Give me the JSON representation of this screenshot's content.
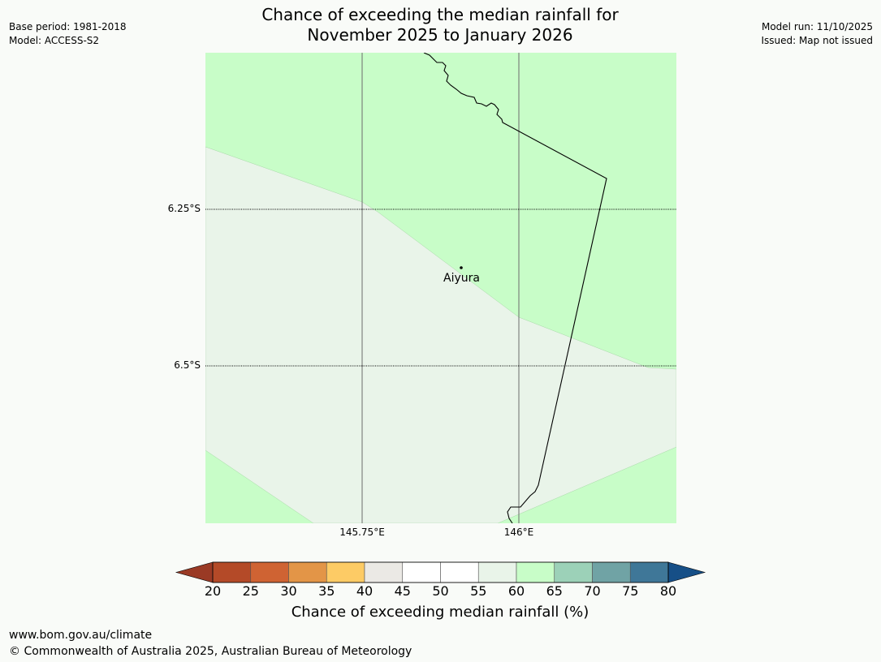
{
  "title": {
    "line1": "Chance of exceeding the median rainfall for",
    "line2": "November 2025 to January 2026"
  },
  "meta_left": {
    "base_period": "Base period: 1981-2018",
    "model": "Model: ACCESS-S2"
  },
  "meta_right": {
    "model_run": "Model run: 11/10/2025",
    "issued": "Issued: Map not issued"
  },
  "map": {
    "gridlines": {
      "latitudes": [
        "6.25°S",
        "6.5°S"
      ],
      "longitudes": [
        "145.75°E",
        "146°E"
      ]
    },
    "places": [
      {
        "name": "Aiyura"
      }
    ],
    "fill_colors": {
      "55_60": "#e9f4e9",
      "60_65": "#c8fdc8"
    }
  },
  "colorbar": {
    "ticks": [
      "20",
      "25",
      "30",
      "35",
      "40",
      "45",
      "50",
      "55",
      "60",
      "65",
      "70",
      "75",
      "80"
    ],
    "colors": {
      "below_20": "#9a3a25",
      "20_25": "#b44a28",
      "25_30": "#cf6333",
      "30_35": "#e39547",
      "35_40": "#fdcb65",
      "40_45": "#ebe9e5",
      "45_50": "#ffffff",
      "50_55": "#ffffff",
      "55_60": "#e9f4e9",
      "60_65": "#c8fdc8",
      "65_70": "#9cd1b8",
      "70_75": "#70a3a5",
      "75_80": "#3f7798",
      "above_80": "#164f87"
    },
    "label": "Chance of exceeding median rainfall (%)"
  },
  "footer": {
    "website": "www.bom.gov.au/climate",
    "copyright": "© Commonwealth of Australia 2025, Australian Bureau of Meteorology"
  }
}
